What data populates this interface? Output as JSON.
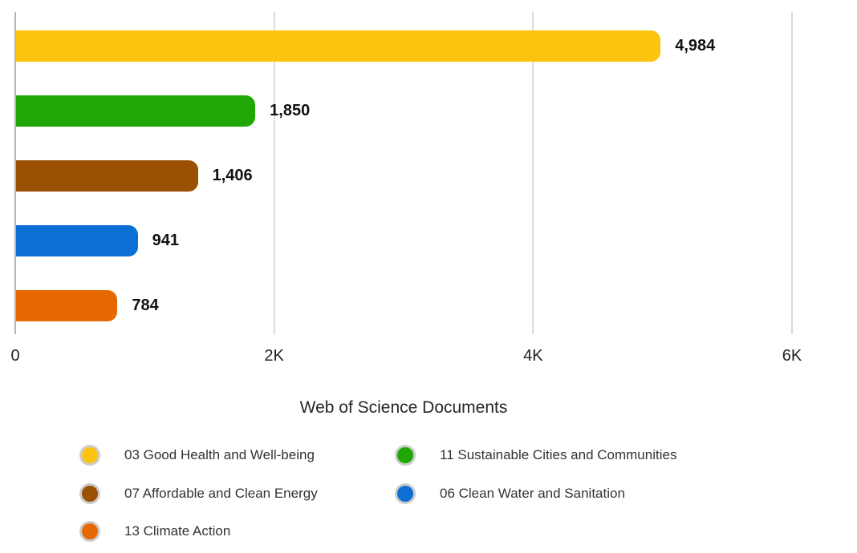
{
  "chart_data": {
    "type": "bar",
    "orientation": "horizontal",
    "categories": [
      "03 Good Health and Well-being",
      "11 Sustainable Cities and Communities",
      "07 Affordable and Clean Energy",
      "06 Clean Water and Sanitation",
      "13 Climate Action"
    ],
    "values": [
      4984,
      1850,
      1406,
      941,
      784
    ],
    "value_labels": [
      "4,984",
      "1,850",
      "1,406",
      "941",
      "784"
    ],
    "colors": [
      "#fcc40e",
      "#1fa805",
      "#9a5103",
      "#0b6fd4",
      "#e56802"
    ],
    "xlabel": "Web of Science Documents",
    "xlim": [
      0,
      6000
    ],
    "x_ticks": [
      "0",
      "2K",
      "4K",
      "6K"
    ],
    "grid": true,
    "gridline_color": "#dcdcdc",
    "axis_line_color": "#b5b5b5",
    "legend_position": "bottom",
    "legend_marker_ring_color": "#cccccc"
  }
}
